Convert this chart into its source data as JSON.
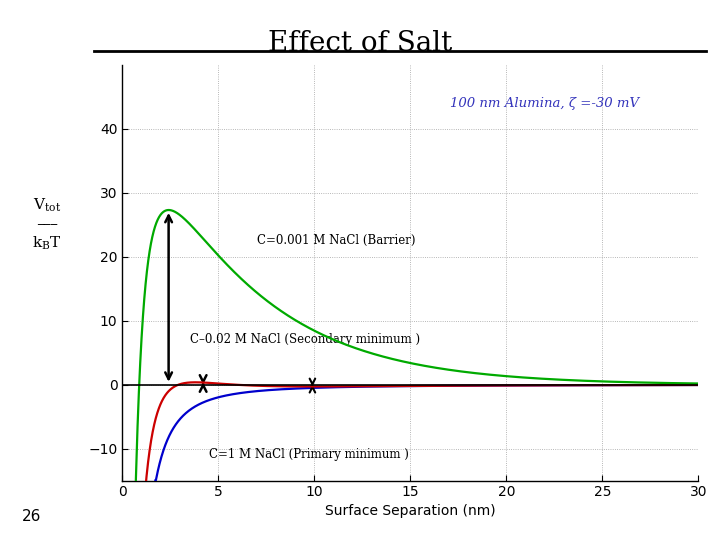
{
  "title": "Effect of Salt",
  "subtitle": "100 nm Alumina, ζ =-30 mV",
  "xlabel": "Surface Separation (nm)",
  "xlim": [
    0,
    30
  ],
  "ylim": [
    -15,
    50
  ],
  "yticks": [
    -10,
    0,
    10,
    20,
    30,
    40
  ],
  "xticks": [
    0,
    5,
    10,
    15,
    20,
    25,
    30
  ],
  "background_color": "#ffffff",
  "line_green_label": "C=0.001 M NaCl (Barrier)",
  "line_red_label": "C–0.02 M NaCl (Secondary minimum )",
  "line_blue_label": "C=1 M NaCl (Primary minimum )",
  "green_color": "#00aa00",
  "red_color": "#cc0000",
  "blue_color": "#0000cc",
  "subtitle_color": "#3333bb",
  "page_number": "26",
  "ylabel_top": "V",
  "ylabel_sub": "tot",
  "ylabel_bot_main": "k",
  "ylabel_bot_sub": "B",
  "ylabel_bot_T": " T"
}
